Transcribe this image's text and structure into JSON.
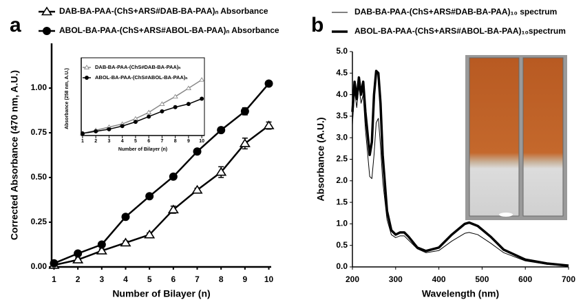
{
  "chart_data": [
    {
      "type": "line",
      "panel_label": "a",
      "x_label": "Number of Bilayer (n)",
      "y_label": "Corrected Absorbance (470 nm, A.U.)",
      "x": [
        1,
        2,
        3,
        4,
        5,
        6,
        7,
        8,
        9,
        10
      ],
      "xlim": [
        0.9,
        10.1
      ],
      "xticks": [
        1,
        2,
        3,
        4,
        5,
        6,
        7,
        8,
        9,
        10
      ],
      "ylim": [
        0,
        1.25
      ],
      "yticks": [
        {
          "value": 0,
          "label": "0.00"
        },
        {
          "value": 0.25,
          "label": "0.25"
        },
        {
          "value": 0.5,
          "label": "0.50"
        },
        {
          "value": 0.75,
          "label": "0.75"
        },
        {
          "value": 1,
          "label": "1.00"
        }
      ],
      "legend_position": "outside-top",
      "series": [
        {
          "name": "DAB-BA-PAA-(ChS+ARS#DAB-BA-PAA)ₙ Absorbance",
          "color": "#000000",
          "marker": "triangle",
          "values": [
            0.01,
            0.04,
            0.09,
            0.135,
            0.18,
            0.32,
            0.43,
            0.53,
            0.69,
            0.79
          ],
          "errors": [
            0.01,
            0.01,
            0.01,
            0.01,
            0.01,
            0.02,
            0.01,
            0.03,
            0.03,
            0.02
          ]
        },
        {
          "name": "ABOL-BA-PAA-(ChS+ARS#ABOL-BA-PAA)ₙ Absorbance",
          "color": "#000000",
          "marker": "circle",
          "values": [
            0.02,
            0.075,
            0.125,
            0.28,
            0.395,
            0.505,
            0.645,
            0.765,
            0.87,
            1.025
          ],
          "errors": [
            0.01,
            0.01,
            0.01,
            0.01,
            0.01,
            0.01,
            0.01,
            0.01,
            0.02,
            0.01
          ]
        }
      ]
    },
    {
      "type": "line",
      "x_label": "Number of Bilayer (n)",
      "y_label": "Absorbance (258 nm, A.U.)",
      "x": [
        1,
        2,
        3,
        4,
        5,
        6,
        7,
        8,
        9,
        10
      ],
      "xlim": [
        0.9,
        10.2
      ],
      "xticks": [
        1,
        2,
        3,
        4,
        5,
        6,
        7,
        8,
        9,
        10
      ],
      "ylim": [
        0,
        0.7
      ],
      "legend_position": "upper-left",
      "series": [
        {
          "name": "DAB-BA-PAA-(ChS#DAB-BA-PAA)ₙ",
          "color": "#888888",
          "marker": "triangle",
          "values": [
            0.02,
            0.05,
            0.08,
            0.11,
            0.16,
            0.22,
            0.3,
            0.37,
            0.45,
            0.53
          ]
        },
        {
          "name": "ABOL-BA-PAA-(ChS#ABOL-BA-PAA)ₙ",
          "color": "#000000",
          "marker": "circle",
          "values": [
            0.02,
            0.04,
            0.06,
            0.09,
            0.13,
            0.18,
            0.23,
            0.27,
            0.3,
            0.35
          ]
        }
      ]
    },
    {
      "type": "line",
      "panel_label": "b",
      "x_label": "Wavelength (nm)",
      "y_label": "Absorbance (A.U.)",
      "x": [
        200,
        205,
        210,
        215,
        220,
        225,
        230,
        240,
        245,
        250,
        255,
        260,
        265,
        270,
        280,
        290,
        300,
        310,
        320,
        330,
        350,
        370,
        400,
        430,
        460,
        470,
        490,
        520,
        550,
        600,
        650,
        700
      ],
      "xlim": [
        200,
        700
      ],
      "xticks": [
        200,
        300,
        400,
        500,
        600,
        700
      ],
      "ylim": [
        0,
        5
      ],
      "yticks": [
        {
          "value": 0,
          "label": "0.0"
        },
        0.5,
        {
          "value": 1,
          "label": "1.0"
        },
        1.5,
        {
          "value": 2,
          "label": "2.0"
        },
        2.5,
        {
          "value": 3,
          "label": "3.0"
        },
        3.5,
        {
          "value": 4,
          "label": "4.0"
        },
        4.5,
        {
          "value": 5,
          "label": "5.0"
        }
      ],
      "legend_position": "outside-top",
      "series": [
        {
          "name": "DAB-BA-PAA-(ChS+ARS#DAB-BA-PAA)₁₀ spectrum",
          "color": "#000000",
          "line_width": 1,
          "values": [
            3.3,
            4.1,
            3.7,
            4.2,
            3.8,
            4.0,
            3.2,
            2.1,
            2.05,
            2.6,
            3.35,
            3.45,
            2.8,
            2.0,
            1.1,
            0.75,
            0.68,
            0.72,
            0.72,
            0.62,
            0.42,
            0.33,
            0.38,
            0.6,
            0.78,
            0.8,
            0.75,
            0.55,
            0.33,
            0.14,
            0.06,
            0.02
          ]
        },
        {
          "name": "ABOL-BA-PAA-(ChS+ARS#ABOL-BA-PAA)₁₀spectrum",
          "color": "#000000",
          "line_width": 3.5,
          "values": [
            3.6,
            4.3,
            3.9,
            4.4,
            4.0,
            4.3,
            3.6,
            2.6,
            2.9,
            4.0,
            4.55,
            4.5,
            3.8,
            2.6,
            1.3,
            0.85,
            0.75,
            0.8,
            0.8,
            0.7,
            0.45,
            0.37,
            0.45,
            0.75,
            1.0,
            1.03,
            0.95,
            0.7,
            0.4,
            0.17,
            0.08,
            0.03
          ]
        }
      ]
    }
  ]
}
